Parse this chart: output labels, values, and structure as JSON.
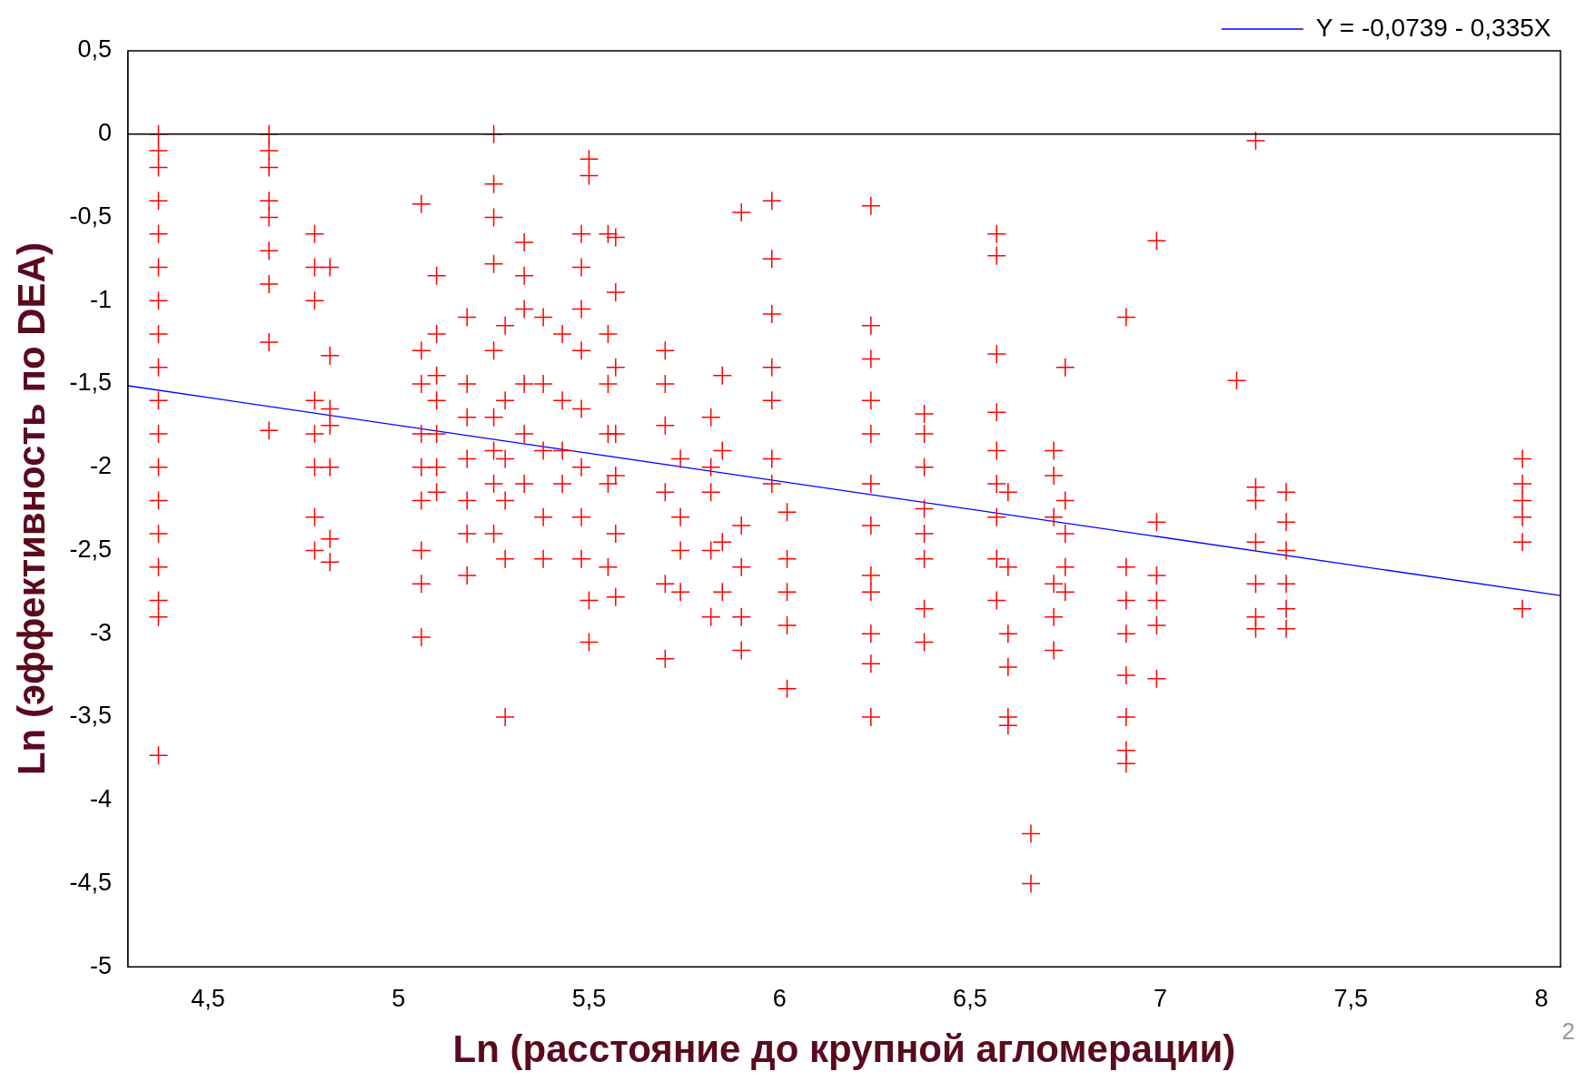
{
  "chart_data": {
    "type": "scatter",
    "xlabel": "Ln (расстояние до крупной агломерации)",
    "ylabel": "Ln (эффективность по DEA)",
    "xlim": [
      4.29,
      8.05
    ],
    "ylim": [
      -5,
      0.5
    ],
    "xticks": [
      {
        "value": 4.5,
        "label": "4,5"
      },
      5,
      {
        "value": 5.5,
        "label": "5,5"
      },
      6,
      {
        "value": 6.5,
        "label": "6,5"
      },
      7,
      {
        "value": 7.5,
        "label": "7,5"
      },
      8
    ],
    "yticks": [
      -5,
      {
        "value": -4.5,
        "label": "-4,5"
      },
      -4,
      {
        "value": -3.5,
        "label": "-3,5"
      },
      -3,
      {
        "value": -2.5,
        "label": "-2,5"
      },
      -2,
      {
        "value": -1.5,
        "label": "-1,5"
      },
      -1,
      {
        "value": -0.5,
        "label": "-0,5"
      },
      0,
      {
        "value": 0.5,
        "label": "0,5"
      }
    ],
    "grid": false,
    "legend": "top right",
    "marker": "cross",
    "ref_lines": [
      {
        "axis": "y",
        "value": 0,
        "color": "#000000"
      }
    ],
    "annotations": [
      "2"
    ],
    "series": [
      {
        "type": "scatter",
        "color": "#ff0000",
        "x": [
          4.37,
          4.37,
          4.37,
          4.37,
          4.37,
          4.37,
          4.37,
          4.37,
          4.37,
          4.37,
          4.37,
          4.37,
          4.37,
          4.37,
          4.37,
          4.37,
          4.37,
          4.37,
          4.66,
          4.66,
          4.66,
          4.66,
          4.66,
          4.66,
          4.66,
          4.66,
          4.66,
          4.78,
          4.78,
          4.78,
          4.78,
          4.78,
          4.78,
          4.78,
          4.78,
          4.82,
          4.82,
          4.82,
          4.82,
          4.82,
          4.82,
          4.82,
          5.06,
          5.06,
          5.06,
          5.06,
          5.06,
          5.06,
          5.06,
          5.06,
          5.06,
          5.1,
          5.1,
          5.1,
          5.1,
          5.1,
          5.1,
          5.1,
          5.18,
          5.18,
          5.18,
          5.18,
          5.18,
          5.18,
          5.18,
          5.25,
          5.25,
          5.25,
          5.25,
          5.25,
          5.25,
          5.25,
          5.25,
          5.25,
          5.28,
          5.28,
          5.28,
          5.28,
          5.28,
          5.28,
          5.33,
          5.33,
          5.33,
          5.33,
          5.33,
          5.33,
          5.38,
          5.38,
          5.38,
          5.38,
          5.38,
          5.43,
          5.43,
          5.43,
          5.43,
          5.48,
          5.48,
          5.48,
          5.48,
          5.48,
          5.48,
          5.48,
          5.48,
          5.5,
          5.5,
          5.5,
          5.5,
          5.55,
          5.55,
          5.55,
          5.55,
          5.55,
          5.55,
          5.57,
          5.57,
          5.57,
          5.57,
          5.57,
          5.57,
          5.57,
          5.7,
          5.7,
          5.7,
          5.7,
          5.7,
          5.7,
          5.74,
          5.74,
          5.74,
          5.74,
          5.82,
          5.82,
          5.82,
          5.82,
          5.82,
          5.85,
          5.85,
          5.85,
          5.85,
          5.9,
          5.9,
          5.9,
          5.9,
          5.9,
          5.98,
          5.98,
          5.98,
          5.98,
          5.98,
          5.98,
          5.98,
          6.02,
          6.02,
          6.02,
          6.02,
          6.02,
          6.24,
          6.24,
          6.24,
          6.24,
          6.24,
          6.24,
          6.24,
          6.24,
          6.24,
          6.24,
          6.24,
          6.24,
          6.38,
          6.38,
          6.38,
          6.38,
          6.38,
          6.38,
          6.38,
          6.38,
          6.57,
          6.57,
          6.57,
          6.57,
          6.57,
          6.57,
          6.57,
          6.57,
          6.57,
          6.6,
          6.6,
          6.6,
          6.6,
          6.6,
          6.6,
          6.66,
          6.66,
          6.72,
          6.72,
          6.72,
          6.72,
          6.72,
          6.72,
          6.75,
          6.75,
          6.75,
          6.75,
          6.75,
          6.91,
          6.91,
          6.91,
          6.91,
          6.91,
          6.91,
          6.91,
          6.91,
          6.99,
          6.99,
          6.99,
          6.99,
          6.99,
          6.99,
          7.2,
          7.25,
          7.25,
          7.25,
          7.25,
          7.25,
          7.25,
          7.25,
          7.33,
          7.33,
          7.33,
          7.33,
          7.33,
          7.33,
          7.95,
          7.95,
          7.95,
          7.95,
          7.95,
          7.95
        ],
        "values": [
          0,
          -0.1,
          -0.2,
          -0.4,
          -0.6,
          -0.8,
          -1,
          -1.2,
          -1.4,
          -1.6,
          -1.8,
          -2,
          -2.2,
          -2.4,
          -2.6,
          -2.8,
          -2.9,
          -3.73,
          0,
          -0.1,
          -0.2,
          -0.4,
          -0.5,
          -0.7,
          -0.9,
          -1.25,
          -1.78,
          -0.6,
          -0.8,
          -1,
          -1.6,
          -1.8,
          -2,
          -2.3,
          -2.5,
          -0.8,
          -1.33,
          -1.65,
          -1.75,
          -2,
          -2.43,
          -2.57,
          -0.42,
          -1.3,
          -1.5,
          -1.8,
          -2,
          -2.2,
          -2.5,
          -2.7,
          -3.02,
          -0.85,
          -1.2,
          -1.45,
          -1.6,
          -1.8,
          -2,
          -2.15,
          -1.1,
          -1.5,
          -1.7,
          -1.95,
          -2.2,
          -2.4,
          -2.65,
          0,
          -0.3,
          -0.5,
          -0.78,
          -1.3,
          -1.7,
          -1.9,
          -2.1,
          -2.4,
          -1.15,
          -1.6,
          -1.95,
          -2.2,
          -2.55,
          -3.5,
          -0.65,
          -0.85,
          -1.05,
          -1.5,
          -1.8,
          -2.1,
          -1.1,
          -1.5,
          -1.9,
          -2.3,
          -2.55,
          -1.2,
          -1.6,
          -1.9,
          -2.1,
          -0.6,
          -0.8,
          -1.05,
          -1.3,
          -1.65,
          -2,
          -2.3,
          -2.55,
          -0.15,
          -0.25,
          -2.8,
          -3.05,
          -0.6,
          -1.2,
          -1.5,
          -1.8,
          -2.1,
          -2.6,
          -0.62,
          -0.95,
          -1.4,
          -1.8,
          -2.05,
          -2.4,
          -2.78,
          -1.3,
          -1.5,
          -1.75,
          -2.15,
          -2.7,
          -3.15,
          -1.95,
          -2.3,
          -2.5,
          -2.75,
          -1.7,
          -2,
          -2.15,
          -2.5,
          -2.9,
          -1.45,
          -1.9,
          -2.45,
          -2.75,
          -0.47,
          -2.35,
          -2.6,
          -2.9,
          -3.1,
          -0.4,
          -0.75,
          -1.08,
          -1.4,
          -1.6,
          -1.95,
          -2.1,
          -2.27,
          -2.55,
          -2.75,
          -2.95,
          -3.33,
          -0.43,
          -1.15,
          -1.35,
          -1.6,
          -1.8,
          -2.1,
          -2.35,
          -2.65,
          -2.75,
          -3,
          -3.18,
          -3.5,
          -1.68,
          -1.8,
          -2,
          -2.25,
          -2.4,
          -2.55,
          -2.85,
          -3.05,
          -0.6,
          -0.73,
          -1.32,
          -1.67,
          -1.9,
          -2.1,
          -2.3,
          -2.55,
          -2.8,
          -2.15,
          -2.6,
          -3,
          -3.2,
          -3.5,
          -3.55,
          -4.2,
          -4.5,
          -1.9,
          -2.05,
          -2.3,
          -2.7,
          -2.9,
          -3.1,
          -1.4,
          -2.2,
          -2.4,
          -2.6,
          -2.75,
          -1.1,
          -2.6,
          -2.8,
          -3,
          -3.25,
          -3.5,
          -3.7,
          -3.78,
          -0.64,
          -2.33,
          -2.65,
          -2.8,
          -2.95,
          -3.27,
          -1.48,
          -0.04,
          -2.12,
          -2.2,
          -2.45,
          -2.7,
          -2.9,
          -2.97,
          -2.15,
          -2.33,
          -2.5,
          -2.7,
          -2.85,
          -2.97,
          -1.95,
          -2.1,
          -2.2,
          -2.3,
          -2.45,
          -2.85
        ]
      },
      {
        "type": "line",
        "name": "Y = -0,0739 - 0,335X",
        "color": "#0000ff",
        "marker": "none",
        "x": [
          4.29,
          8.05
        ],
        "values": [
          -1.511,
          -2.771
        ]
      }
    ]
  }
}
